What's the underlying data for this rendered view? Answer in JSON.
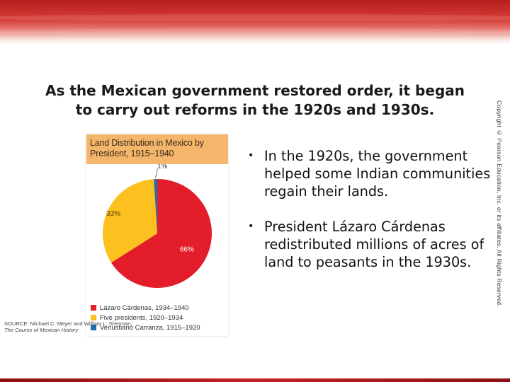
{
  "slide": {
    "title": "As the Mexican government restored order, it began\nto carry out reforms in the 1920s and 1930s.",
    "copyright": "Copyright © Pearson Education, Inc. or its affiliates. All Rights Reserved.",
    "bullets": [
      "In the 1920s, the government helped some Indian communities regain their lands.",
      "President Lázaro Cárdenas redistributed millions of acres of land to peasants in the 1930s."
    ],
    "colors": {
      "banner": "#c42222",
      "chart_header": "#f4b66a",
      "cardenas": "#e31e2a",
      "five_presidents": "#fcc11f",
      "carranza": "#1b72b0"
    }
  },
  "chart_data": {
    "type": "pie",
    "title": "Land Distribution in Mexico by\nPresident, 1915–1940",
    "slices": [
      {
        "label": "Lázaro Cárdenas, 1934–1940",
        "value": 66,
        "value_label": "66%",
        "color": "#e31e2a"
      },
      {
        "label": "Five presidents, 1920–1934",
        "value": 33,
        "value_label": "33%",
        "color": "#fcc11f"
      },
      {
        "label": "Venustiano Carranza, 1915–1920",
        "value": 1,
        "value_label": "1%",
        "color": "#1b72b0"
      }
    ],
    "legend": "bottom",
    "source_prefix": "SOURCE: Michael C. Meyer and William L. Sherman,",
    "source_book": "The Course of Mexican History"
  }
}
